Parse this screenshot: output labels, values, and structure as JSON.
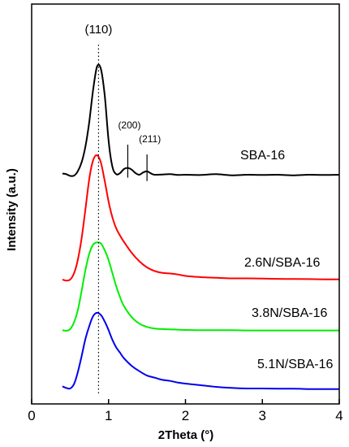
{
  "chart_data": {
    "type": "line",
    "xlabel": "2Theta (°)",
    "ylabel": "Intensity (a.u.)",
    "xlim": [
      0,
      4
    ],
    "x_ticks": [
      "0",
      "1",
      "2",
      "3",
      "4"
    ],
    "y_ticks": "none",
    "grid": false,
    "legend": "inline labels to the right of each curve",
    "annotations": [
      {
        "text": "(110)",
        "x": 0.87,
        "style": "dotted vertical line through all peaks"
      },
      {
        "text": "(200)",
        "x": 1.25,
        "style": "solid marker on SBA-16 curve"
      },
      {
        "text": "(211)",
        "x": 1.5,
        "style": "solid marker on SBA-16 curve"
      }
    ],
    "series": [
      {
        "name": "SBA-16",
        "color": "#000000",
        "x": [
          0.4,
          0.45,
          0.5,
          0.55,
          0.6,
          0.65,
          0.7,
          0.75,
          0.8,
          0.85,
          0.9,
          0.95,
          1.0,
          1.05,
          1.1,
          1.15,
          1.2,
          1.25,
          1.3,
          1.35,
          1.4,
          1.45,
          1.5,
          1.55,
          1.6,
          1.7,
          1.8,
          1.9,
          2.0,
          2.2,
          2.4,
          2.6,
          2.8,
          3.0,
          3.2,
          3.4,
          3.6,
          3.8,
          4.0
        ],
        "y": [
          0.6,
          0.55,
          0.4,
          0.42,
          0.8,
          1.6,
          3.0,
          5.2,
          8.0,
          10.0,
          9.8,
          7.5,
          3.5,
          1.2,
          0.55,
          0.65,
          1.0,
          1.1,
          0.95,
          0.65,
          0.5,
          0.7,
          0.8,
          0.62,
          0.5,
          0.52,
          0.55,
          0.48,
          0.5,
          0.48,
          0.55,
          0.45,
          0.5,
          0.48,
          0.5,
          0.45,
          0.5,
          0.48,
          0.5
        ]
      },
      {
        "name": "2.6N/SBA-16",
        "color": "#ff0000",
        "x": [
          0.4,
          0.45,
          0.5,
          0.55,
          0.6,
          0.65,
          0.7,
          0.75,
          0.8,
          0.85,
          0.9,
          0.95,
          1.0,
          1.05,
          1.1,
          1.15,
          1.2,
          1.3,
          1.4,
          1.5,
          1.6,
          1.7,
          1.8,
          1.9,
          2.0,
          2.2,
          2.4,
          2.6,
          2.8,
          3.0,
          3.2,
          3.4,
          3.6,
          3.8,
          4.0
        ],
        "y": [
          0.2,
          0.12,
          0.2,
          0.7,
          1.8,
          3.6,
          6.0,
          8.5,
          10.0,
          10.4,
          9.8,
          8.3,
          6.6,
          5.3,
          4.4,
          3.8,
          3.3,
          2.4,
          1.7,
          1.2,
          0.9,
          0.75,
          0.7,
          0.62,
          0.5,
          0.4,
          0.35,
          0.3,
          0.3,
          0.28,
          0.26,
          0.25,
          0.24,
          0.22,
          0.22
        ]
      },
      {
        "name": "3.8N/SBA-16",
        "color": "#00ee00",
        "x": [
          0.4,
          0.45,
          0.5,
          0.55,
          0.6,
          0.65,
          0.7,
          0.75,
          0.8,
          0.85,
          0.9,
          0.95,
          1.0,
          1.05,
          1.1,
          1.15,
          1.2,
          1.3,
          1.4,
          1.5,
          1.6,
          1.7,
          1.8,
          1.9,
          2.0,
          2.2,
          2.4,
          2.6,
          2.8,
          3.0,
          3.2,
          3.4,
          3.6,
          3.8,
          4.0
        ],
        "y": [
          0.2,
          0.15,
          0.3,
          0.9,
          2.0,
          3.8,
          5.7,
          7.2,
          8.0,
          8.2,
          8.1,
          7.5,
          6.6,
          5.4,
          4.2,
          3.2,
          2.4,
          1.4,
          0.8,
          0.5,
          0.35,
          0.3,
          0.28,
          0.25,
          0.22,
          0.2,
          0.2,
          0.2,
          0.18,
          0.18,
          0.18,
          0.18,
          0.18,
          0.18,
          0.18
        ]
      },
      {
        "name": "5.1N/SBA-16",
        "color": "#0000ee",
        "x": [
          0.4,
          0.45,
          0.5,
          0.55,
          0.6,
          0.65,
          0.7,
          0.75,
          0.8,
          0.85,
          0.9,
          0.95,
          1.0,
          1.05,
          1.1,
          1.15,
          1.2,
          1.3,
          1.4,
          1.5,
          1.6,
          1.7,
          1.8,
          1.9,
          2.0,
          2.2,
          2.4,
          2.6,
          2.8,
          3.0,
          3.2,
          3.4,
          3.6,
          3.8,
          4.0
        ],
        "y": [
          0.5,
          0.35,
          0.3,
          0.7,
          1.8,
          3.3,
          4.9,
          6.1,
          7.0,
          7.3,
          7.1,
          6.5,
          5.7,
          4.8,
          4.1,
          3.6,
          3.1,
          2.4,
          1.9,
          1.5,
          1.3,
          1.1,
          1.0,
          0.85,
          0.75,
          0.6,
          0.45,
          0.35,
          0.3,
          0.3,
          0.28,
          0.28,
          0.25,
          0.25,
          0.25
        ]
      }
    ]
  }
}
